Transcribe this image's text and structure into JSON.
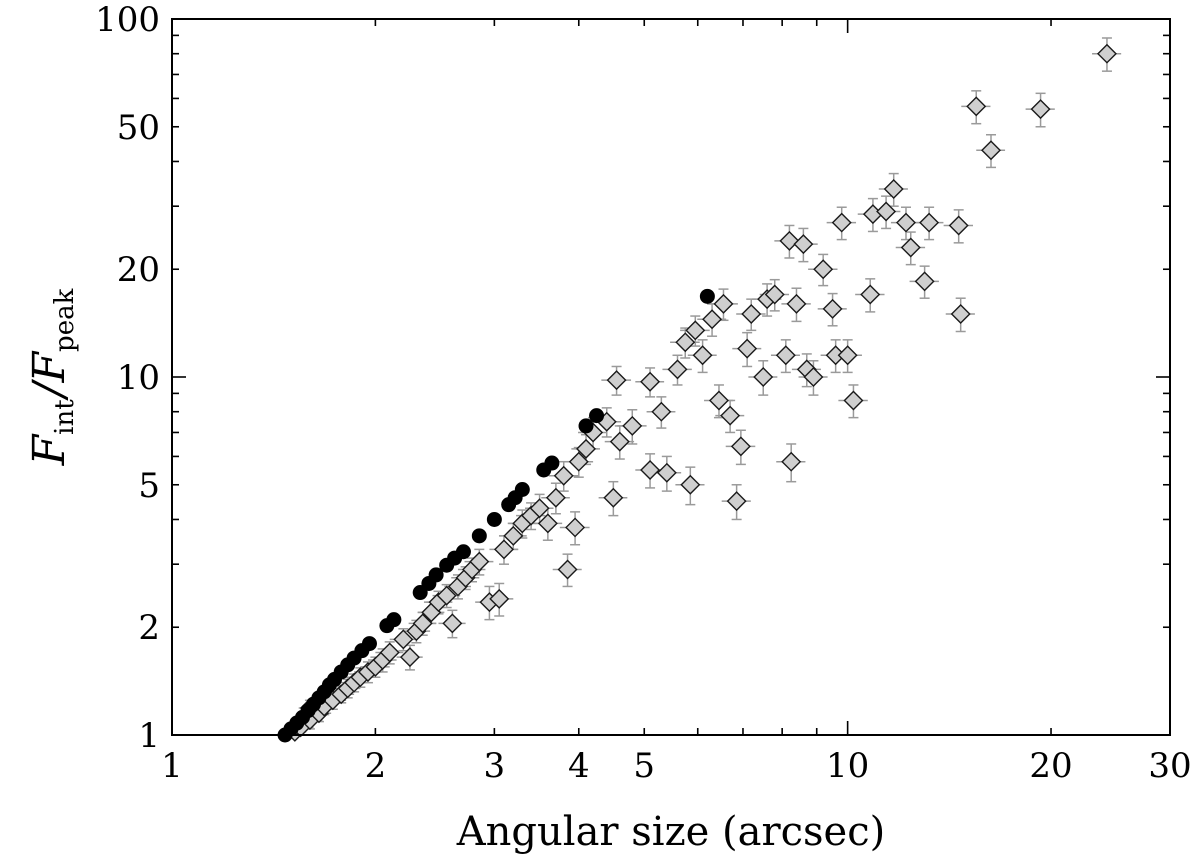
{
  "chart_data": {
    "type": "scatter",
    "xlabel": "Angular size (arcsec)",
    "ylabel_parts": [
      "F",
      "int",
      "/",
      "F",
      "peak"
    ],
    "xscale": "log",
    "yscale": "log",
    "xlim": [
      1,
      30
    ],
    "ylim": [
      1,
      100
    ],
    "grid": false,
    "x_ticks": [
      1,
      2,
      3,
      4,
      5,
      10,
      20,
      30
    ],
    "x_tick_labels": [
      "1",
      "2",
      "3",
      "4",
      "5",
      "10",
      "20",
      "30"
    ],
    "y_ticks": [
      1,
      2,
      5,
      10,
      20,
      50,
      100
    ],
    "y_tick_labels": [
      "1",
      "2",
      "5",
      "10",
      "20",
      "50",
      "100"
    ],
    "colors": {
      "diamond_fill": "#cfcfcf",
      "diamond_edge": "#1a1a1a",
      "errorbar": "#9a9a9a",
      "circle": "#000000"
    },
    "series": [
      {
        "marker": "circle",
        "points": [
          [
            1.47,
            1.0
          ],
          [
            1.5,
            1.04
          ],
          [
            1.53,
            1.08
          ],
          [
            1.56,
            1.12
          ],
          [
            1.59,
            1.17
          ],
          [
            1.62,
            1.22
          ],
          [
            1.65,
            1.27
          ],
          [
            1.68,
            1.32
          ],
          [
            1.71,
            1.38
          ],
          [
            1.74,
            1.43
          ],
          [
            1.78,
            1.5
          ],
          [
            1.82,
            1.57
          ],
          [
            1.86,
            1.64
          ],
          [
            1.91,
            1.72
          ],
          [
            1.96,
            1.8
          ],
          [
            2.08,
            2.02
          ],
          [
            2.13,
            2.1
          ],
          [
            2.33,
            2.5
          ],
          [
            2.4,
            2.65
          ],
          [
            2.46,
            2.8
          ],
          [
            2.55,
            2.98
          ],
          [
            2.62,
            3.12
          ],
          [
            2.7,
            3.25
          ],
          [
            2.85,
            3.6
          ],
          [
            3.0,
            4.0
          ],
          [
            3.15,
            4.4
          ],
          [
            3.22,
            4.6
          ],
          [
            3.3,
            4.85
          ],
          [
            3.55,
            5.5
          ],
          [
            3.65,
            5.75
          ],
          [
            4.1,
            7.3
          ],
          [
            4.25,
            7.8
          ],
          [
            6.2,
            16.8
          ]
        ]
      },
      {
        "marker": "diamond",
        "points": [
          [
            1.52,
            1.02,
            0.06,
            0.05
          ],
          [
            1.55,
            1.05,
            0.07,
            0.05
          ],
          [
            1.6,
            1.1,
            0.07,
            0.06
          ],
          [
            1.65,
            1.15,
            0.07,
            0.06
          ],
          [
            1.68,
            1.2,
            0.07,
            0.06
          ],
          [
            1.6,
            1.19,
            0.06,
            0.06
          ],
          [
            1.73,
            1.25,
            0.08,
            0.07
          ],
          [
            1.78,
            1.3,
            0.08,
            0.07
          ],
          [
            1.82,
            1.35,
            0.08,
            0.08
          ],
          [
            1.86,
            1.4,
            0.08,
            0.08
          ],
          [
            1.9,
            1.45,
            0.09,
            0.09
          ],
          [
            1.95,
            1.5,
            0.09,
            0.1
          ],
          [
            2.0,
            1.55,
            0.1,
            0.1
          ],
          [
            2.05,
            1.62,
            0.1,
            0.12
          ],
          [
            2.1,
            1.7,
            0.1,
            0.12
          ],
          [
            2.2,
            1.85,
            0.1,
            0.13
          ],
          [
            2.25,
            1.65,
            0.1,
            0.13
          ],
          [
            2.3,
            1.95,
            0.11,
            0.14
          ],
          [
            2.35,
            2.05,
            0.11,
            0.15
          ],
          [
            2.42,
            2.2,
            0.11,
            0.15
          ],
          [
            2.48,
            2.35,
            0.12,
            0.17
          ],
          [
            2.55,
            2.45,
            0.12,
            0.18
          ],
          [
            2.6,
            2.05,
            0.12,
            0.18
          ],
          [
            2.65,
            2.6,
            0.12,
            0.2
          ],
          [
            2.72,
            2.75,
            0.13,
            0.2
          ],
          [
            2.78,
            2.9,
            0.13,
            0.22
          ],
          [
            2.85,
            3.05,
            0.14,
            0.25
          ],
          [
            2.95,
            2.35,
            0.14,
            0.25
          ],
          [
            3.05,
            2.4,
            0.15,
            0.25
          ],
          [
            3.1,
            3.3,
            0.15,
            0.3
          ],
          [
            3.2,
            3.6,
            0.15,
            0.3
          ],
          [
            3.3,
            3.9,
            0.16,
            0.35
          ],
          [
            3.4,
            4.1,
            0.17,
            0.35
          ],
          [
            3.5,
            4.3,
            0.17,
            0.4
          ],
          [
            3.6,
            3.9,
            0.18,
            0.4
          ],
          [
            3.7,
            4.6,
            0.18,
            0.45
          ],
          [
            3.8,
            5.3,
            0.19,
            0.5
          ],
          [
            3.85,
            2.9,
            0.19,
            0.3
          ],
          [
            3.95,
            3.8,
            0.2,
            0.4
          ],
          [
            4.0,
            5.8,
            0.2,
            0.55
          ],
          [
            4.1,
            6.3,
            0.2,
            0.6
          ],
          [
            4.2,
            7.0,
            0.21,
            0.7
          ],
          [
            4.4,
            7.5,
            0.22,
            0.7
          ],
          [
            4.55,
            9.8,
            0.23,
            0.9
          ],
          [
            4.5,
            4.6,
            0.22,
            0.5
          ],
          [
            4.6,
            6.6,
            0.23,
            0.7
          ],
          [
            4.8,
            7.3,
            0.24,
            0.8
          ],
          [
            5.1,
            9.7,
            0.25,
            0.9
          ],
          [
            5.3,
            8.0,
            0.26,
            0.8
          ],
          [
            5.1,
            5.5,
            0.25,
            0.6
          ],
          [
            5.4,
            5.4,
            0.27,
            0.6
          ],
          [
            5.6,
            10.5,
            0.28,
            1.0
          ],
          [
            5.75,
            12.5,
            0.29,
            1.2
          ],
          [
            5.85,
            5.0,
            0.29,
            0.6
          ],
          [
            5.95,
            13.5,
            0.3,
            1.3
          ],
          [
            6.1,
            11.5,
            0.3,
            1.2
          ],
          [
            6.3,
            14.5,
            0.31,
            1.5
          ],
          [
            6.45,
            8.6,
            0.32,
            0.9
          ],
          [
            6.55,
            16.0,
            0.33,
            1.6
          ],
          [
            6.7,
            7.8,
            0.33,
            0.8
          ],
          [
            6.85,
            4.5,
            0.34,
            0.5
          ],
          [
            6.95,
            6.4,
            0.35,
            0.7
          ],
          [
            7.1,
            12.0,
            0.35,
            1.3
          ],
          [
            7.2,
            15.0,
            0.36,
            1.5
          ],
          [
            7.5,
            10.0,
            0.37,
            1.1
          ],
          [
            7.6,
            16.5,
            0.38,
            1.7
          ],
          [
            7.8,
            17.0,
            0.39,
            1.7
          ],
          [
            8.1,
            11.5,
            0.4,
            1.2
          ],
          [
            8.2,
            24.0,
            0.41,
            2.5
          ],
          [
            8.25,
            5.8,
            0.41,
            0.7
          ],
          [
            8.4,
            16.0,
            0.42,
            1.7
          ],
          [
            8.6,
            23.5,
            0.43,
            2.5
          ],
          [
            8.7,
            10.5,
            0.43,
            1.1
          ],
          [
            8.9,
            10.0,
            0.44,
            1.1
          ],
          [
            9.2,
            20.0,
            0.46,
            2.0
          ],
          [
            9.5,
            15.5,
            0.47,
            1.6
          ],
          [
            9.6,
            11.5,
            0.48,
            1.2
          ],
          [
            9.8,
            27.0,
            0.49,
            2.8
          ],
          [
            10.0,
            11.5,
            0.5,
            1.2
          ],
          [
            10.2,
            8.6,
            0.51,
            0.9
          ],
          [
            10.8,
            17.0,
            0.54,
            1.8
          ],
          [
            10.9,
            28.5,
            0.55,
            3.0
          ],
          [
            11.4,
            29.0,
            0.57,
            3.0
          ],
          [
            11.7,
            33.5,
            0.58,
            3.5
          ],
          [
            12.2,
            27.0,
            0.61,
            2.8
          ],
          [
            12.4,
            23.0,
            0.62,
            2.4
          ],
          [
            13.0,
            18.5,
            0.65,
            1.9
          ],
          [
            13.2,
            27.0,
            0.66,
            2.8
          ],
          [
            14.6,
            26.5,
            0.73,
            2.8
          ],
          [
            14.7,
            15.0,
            0.73,
            1.6
          ],
          [
            15.5,
            57.0,
            0.77,
            6.0
          ],
          [
            16.3,
            43.0,
            0.8,
            4.5
          ],
          [
            19.3,
            56.0,
            0.96,
            6.0
          ],
          [
            24.2,
            80.0,
            1.2,
            8.5
          ]
        ]
      }
    ]
  }
}
